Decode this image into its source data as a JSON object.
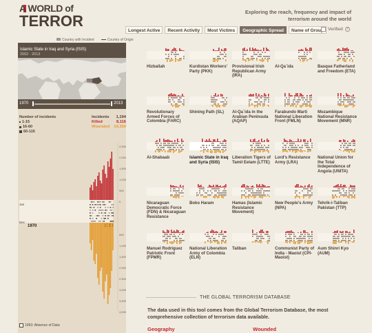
{
  "logo": {
    "line1": "A WORLD of",
    "line2": "TERROR"
  },
  "tagline": "Exploring the reach, frequency and impact of terrorism around the world",
  "tabs": [
    {
      "label": "Longest Active"
    },
    {
      "label": "Recent Activity"
    },
    {
      "label": "Most Victims"
    },
    {
      "label": "Geographic Spread",
      "active": true
    },
    {
      "label": "Name of Group"
    }
  ],
  "verified": {
    "label": "Verified",
    "checked": false
  },
  "map_legend": {
    "country_with_incident": "Country with Incident",
    "country_of_origin": "Country of Origin"
  },
  "side": {
    "group_title": "Islamic State in Iraq and Syria (ISIS)",
    "years": "2002 - 2013",
    "slider": {
      "start": "1970",
      "end": "2013"
    },
    "incidents_legend": {
      "title": "Number of incidents",
      "items": [
        "1-15",
        "16-60",
        "60-115"
      ]
    },
    "stats": {
      "incidents_label": "Incidents",
      "incidents_value": "1,194",
      "killed_label": "Killed",
      "killed_value": "8,116",
      "wounded_label": "Wounded",
      "wounded_value": "19,330"
    },
    "chart": {
      "year_start": "1970",
      "year_end": "2013",
      "month_top": "Jan",
      "month_bottom": "Dec",
      "killed_ticks": [
        "2,500",
        "2,000",
        "1,500",
        "1,000",
        "500",
        "0"
      ],
      "wounded_ticks": [
        "500",
        "1,000",
        "1,500",
        "2,000",
        "2,500",
        "3,000",
        "3,500",
        "4,000"
      ]
    },
    "absence_label": "1993: Absence of Data"
  },
  "groups": [
    {
      "name": "Hizballah"
    },
    {
      "name": "Kurdistan Workers' Party (PKK)"
    },
    {
      "name": "Provisional Irish Republican Army (IRA)"
    },
    {
      "name": "Al-Qa`ida"
    },
    {
      "name": "Basque Fatherland and Freedom (ETA)"
    },
    {
      "name": "Revolutionary Armed Forces of Colombia (FARC)"
    },
    {
      "name": "Shining Path (SL)"
    },
    {
      "name": "Al-Qa`ida in the Arabian Peninsula (AQAP)"
    },
    {
      "name": "Farabundo Marti National Liberation Front (FMLN)"
    },
    {
      "name": "Mozambique National Resistance Movement (MNR)"
    },
    {
      "name": "Al-Shabaab"
    },
    {
      "name": "Islamic State in Iraq and Syria (ISIS)",
      "selected": true
    },
    {
      "name": "Liberation Tigers of Tamil Eelam (LTTE)"
    },
    {
      "name": "Lord's Resistance Army (LRA)"
    },
    {
      "name": "National Union for the Total Independence of Angola (UNITA)"
    },
    {
      "name": "Nicaraguan Democratic Force (FDN) & Nicaraguan Resistance"
    },
    {
      "name": "Boko Haram"
    },
    {
      "name": "Hamas (Islamic Resistance Movement)"
    },
    {
      "name": "New People's Army (NPA)"
    },
    {
      "name": "Tehrik-i-Taliban Pakistan (TTP)"
    },
    {
      "name": "Manuel Rodriguez Patriotic Front (FPMR)"
    },
    {
      "name": "National Liberation Army of Colombia (ELN)"
    },
    {
      "name": "Taliban"
    },
    {
      "name": "Communist Party of India - Maoist (CPI-Maoist)"
    },
    {
      "name": "Aum Shinri Kyo (AUM)"
    }
  ],
  "database": {
    "title": "THE GLOBAL TERRORISM DATABASE",
    "text": "The data used in this tool comes from the Global Terrorism Database, the most comprehensive collection of terrorism data available.",
    "geography": "Geography",
    "wounded": "Wounded"
  },
  "colors": {
    "killed": "#c1272d",
    "wounded": "#e49a2a",
    "brown": "#5d5145",
    "background": "#f1ece2"
  }
}
